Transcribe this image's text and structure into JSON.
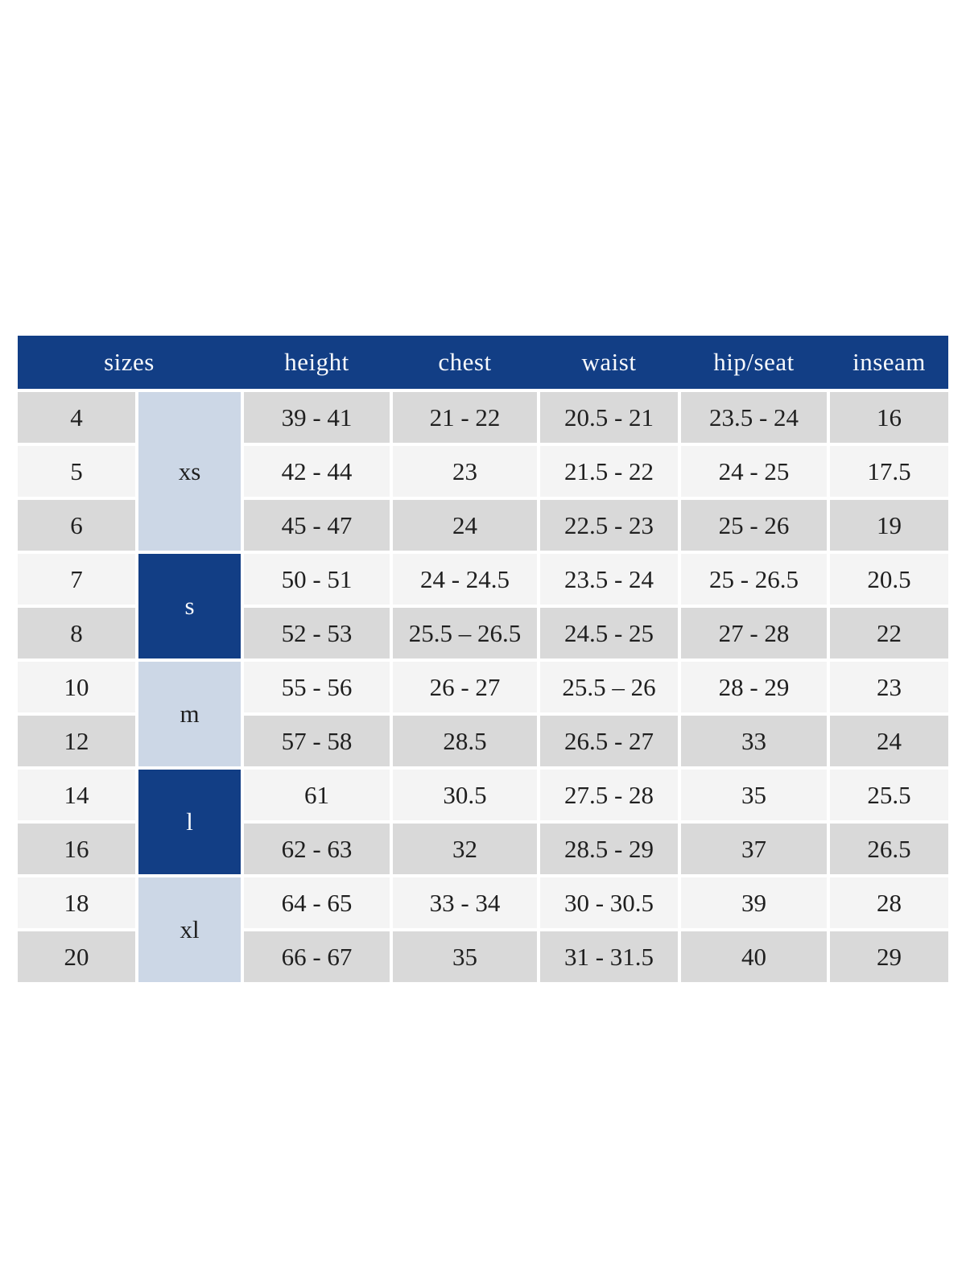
{
  "table": {
    "header": {
      "sizes": "sizes",
      "cols": [
        "height",
        "chest",
        "waist",
        "hip/seat",
        "inseam"
      ]
    },
    "groups": [
      {
        "label": "xs",
        "span": 3,
        "style": "light"
      },
      {
        "label": "s",
        "span": 2,
        "style": "dark"
      },
      {
        "label": "m",
        "span": 2,
        "style": "light"
      },
      {
        "label": "l",
        "span": 2,
        "style": "dark"
      },
      {
        "label": "xl",
        "span": 2,
        "style": "light"
      }
    ],
    "rows": [
      {
        "size": "4",
        "height": "39 - 41",
        "chest": "21 - 22",
        "waist": "20.5 - 21",
        "hip_seat": "23.5 - 24",
        "inseam": "16"
      },
      {
        "size": "5",
        "height": "42 - 44",
        "chest": "23",
        "waist": "21.5 - 22",
        "hip_seat": "24 - 25",
        "inseam": "17.5"
      },
      {
        "size": "6",
        "height": "45 - 47",
        "chest": "24",
        "waist": "22.5 - 23",
        "hip_seat": "25 - 26",
        "inseam": "19"
      },
      {
        "size": "7",
        "height": "50 - 51",
        "chest": "24 - 24.5",
        "waist": "23.5 - 24",
        "hip_seat": "25 - 26.5",
        "inseam": "20.5"
      },
      {
        "size": "8",
        "height": "52 - 53",
        "chest": "25.5 – 26.5",
        "waist": "24.5 - 25",
        "hip_seat": "27 - 28",
        "inseam": "22"
      },
      {
        "size": "10",
        "height": "55 - 56",
        "chest": "26 - 27",
        "waist": "25.5 – 26",
        "hip_seat": "28 - 29",
        "inseam": "23"
      },
      {
        "size": "12",
        "height": "57 - 58",
        "chest": "28.5",
        "waist": "26.5 - 27",
        "hip_seat": "33",
        "inseam": "24"
      },
      {
        "size": "14",
        "height": "61",
        "chest": "30.5",
        "waist": "27.5 - 28",
        "hip_seat": "35",
        "inseam": "25.5"
      },
      {
        "size": "16",
        "height": "62 - 63",
        "chest": "32",
        "waist": "28.5 - 29",
        "hip_seat": "37",
        "inseam": "26.5"
      },
      {
        "size": "18",
        "height": "64 - 65",
        "chest": "33 - 34",
        "waist": "30 - 30.5",
        "hip_seat": "39",
        "inseam": "28"
      },
      {
        "size": "20",
        "height": "66 - 67",
        "chest": "35",
        "waist": "31 - 31.5",
        "hip_seat": "40",
        "inseam": "29"
      }
    ],
    "colors": {
      "header_bg": "#123e85",
      "header_text": "#f7f9fc",
      "group_light_bg": "#ccd7e6",
      "group_dark_bg": "#123e85",
      "row_gray": "#d9d9d9",
      "row_light": "#f4f4f4",
      "body_text": "#1f1f1f"
    }
  }
}
